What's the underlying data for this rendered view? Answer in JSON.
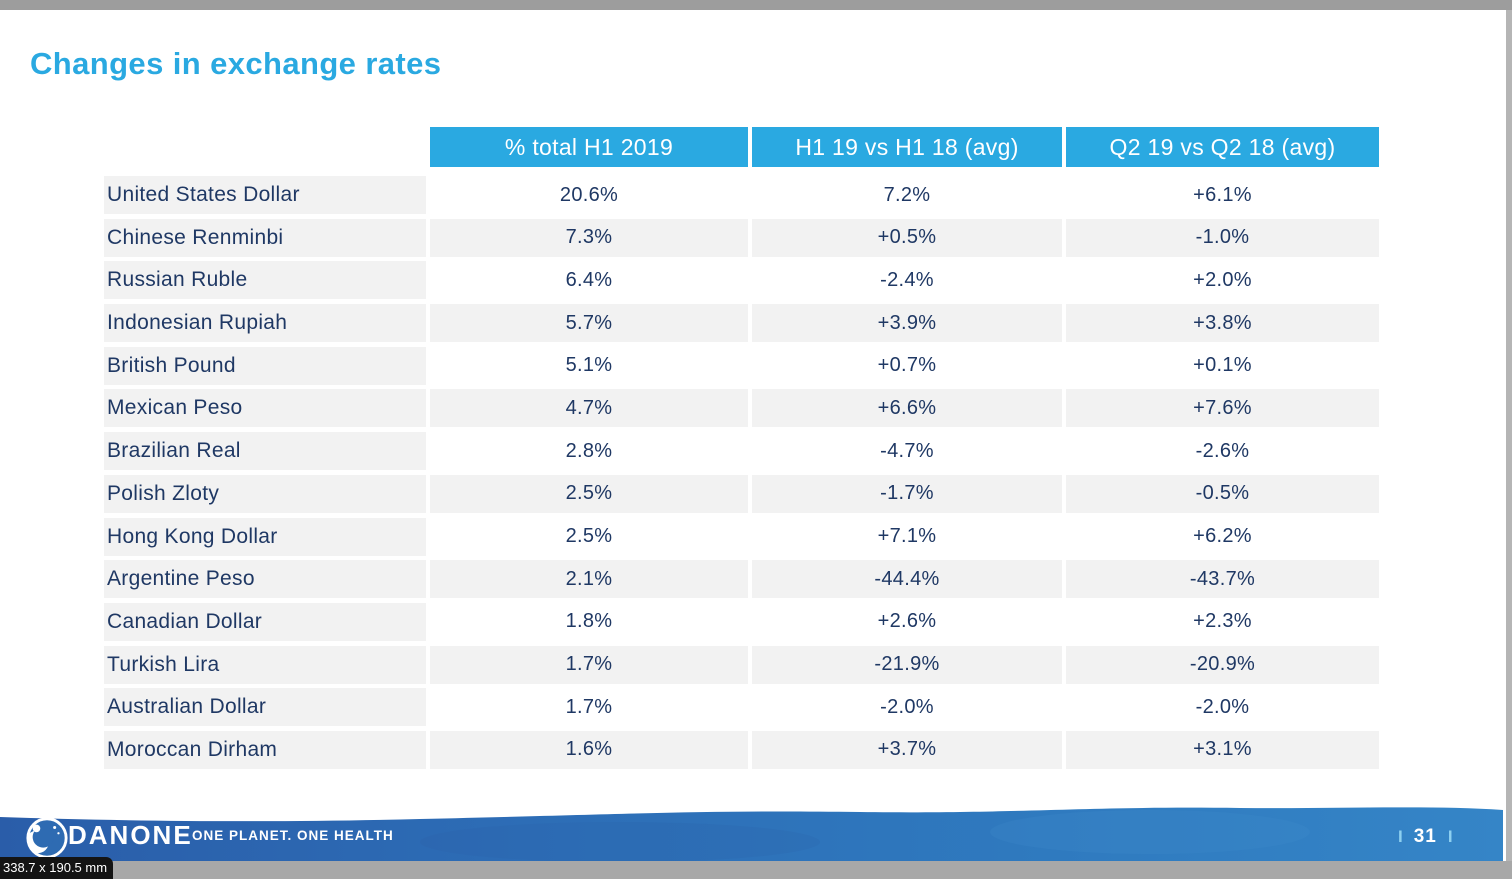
{
  "window": {
    "size_tooltip": "338.7 x 190.5 mm",
    "top_bar_color": "#9d9d9d",
    "status_bar_color": "#a8a8a8"
  },
  "slide": {
    "title": "Changes in exchange rates",
    "accent_blue": "#2aa9e1",
    "navy_text": "#1f3864",
    "row_gray": "#f2f2f2"
  },
  "table": {
    "columns": [
      "% total H1 2019",
      "H1 19 vs H1 18 (avg)",
      "Q2 19 vs Q2 18 (avg)"
    ],
    "rows": [
      {
        "currency": "United States Dollar",
        "total": "20.6%",
        "h1_vs": "7.2%",
        "q2_vs": "+6.1%"
      },
      {
        "currency": "Chinese Renminbi",
        "total": "7.3%",
        "h1_vs": "+0.5%",
        "q2_vs": "-1.0%"
      },
      {
        "currency": "Russian Ruble",
        "total": "6.4%",
        "h1_vs": "-2.4%",
        "q2_vs": "+2.0%"
      },
      {
        "currency": "Indonesian Rupiah",
        "total": "5.7%",
        "h1_vs": "+3.9%",
        "q2_vs": "+3.8%"
      },
      {
        "currency": "British Pound",
        "total": "5.1%",
        "h1_vs": "+0.7%",
        "q2_vs": "+0.1%"
      },
      {
        "currency": "Mexican Peso",
        "total": "4.7%",
        "h1_vs": "+6.6%",
        "q2_vs": "+7.6%"
      },
      {
        "currency": "Brazilian Real",
        "total": "2.8%",
        "h1_vs": "-4.7%",
        "q2_vs": "-2.6%"
      },
      {
        "currency": "Polish Zloty",
        "total": "2.5%",
        "h1_vs": "-1.7%",
        "q2_vs": "-0.5%"
      },
      {
        "currency": "Hong Kong Dollar",
        "total": "2.5%",
        "h1_vs": "+7.1%",
        "q2_vs": "+6.2%"
      },
      {
        "currency": "Argentine Peso",
        "total": "2.1%",
        "h1_vs": "-44.4%",
        "q2_vs": "-43.7%"
      },
      {
        "currency": "Canadian Dollar",
        "total": "1.8%",
        "h1_vs": "+2.6%",
        "q2_vs": "+2.3%"
      },
      {
        "currency": "Turkish Lira",
        "total": "1.7%",
        "h1_vs": "-21.9%",
        "q2_vs": "-20.9%"
      },
      {
        "currency": "Australian Dollar",
        "total": "1.7%",
        "h1_vs": "-2.0%",
        "q2_vs": "-2.0%"
      },
      {
        "currency": "Moroccan Dirham",
        "total": "1.6%",
        "h1_vs": "+3.7%",
        "q2_vs": "+3.1%"
      }
    ]
  },
  "footer": {
    "brand": "DANONE",
    "tagline": "ONE PLANET. ONE HEALTH",
    "separator": "I",
    "page_number": "31",
    "band_blue_left": "#2a5da9",
    "band_blue_right": "#3585c7"
  }
}
